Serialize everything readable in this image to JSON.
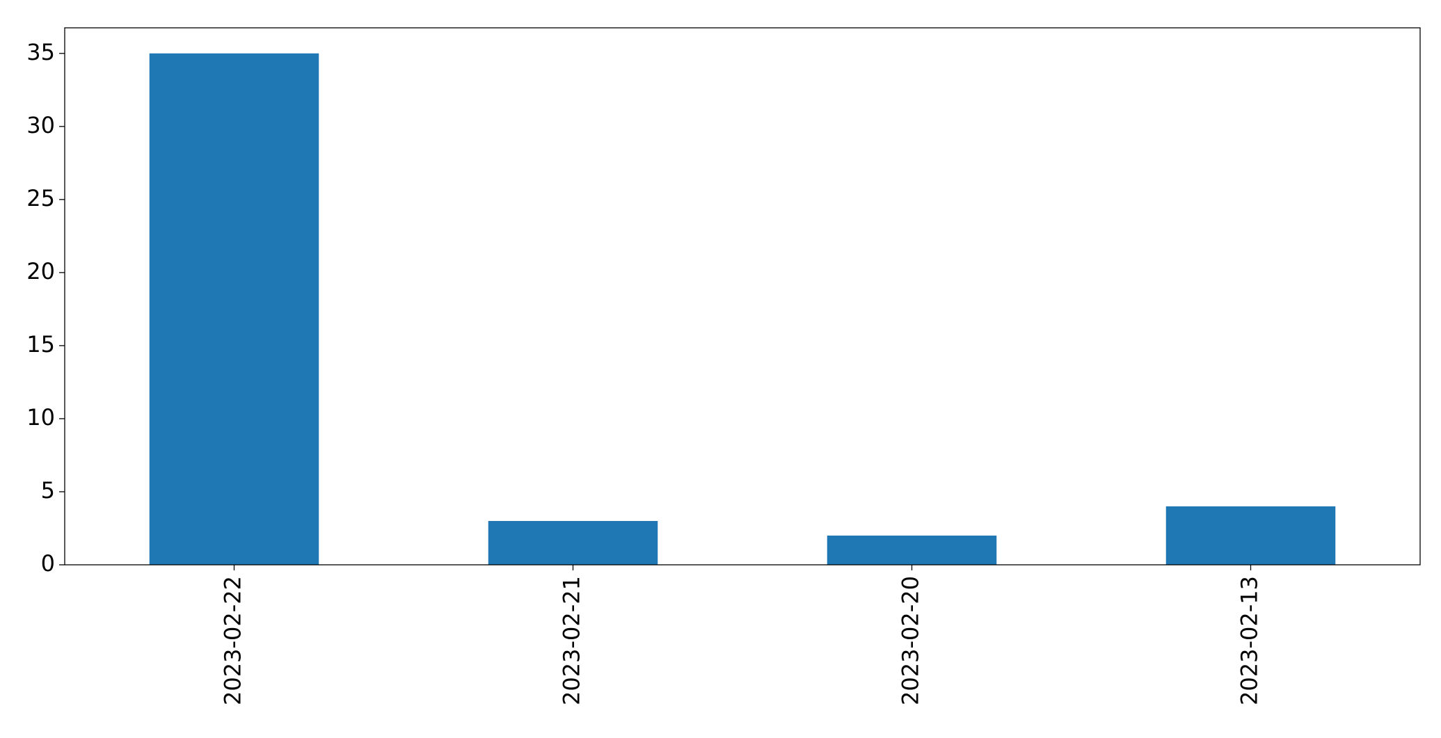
{
  "chart_data": {
    "type": "bar",
    "categories": [
      "2023-02-22",
      "2023-02-21",
      "2023-02-20",
      "2023-02-13"
    ],
    "values": [
      35,
      3,
      2,
      4
    ],
    "color": "#1f77b4",
    "ylim": [
      0,
      36.75
    ],
    "yticks": [
      0,
      5,
      10,
      15,
      20,
      25,
      30,
      35
    ],
    "grid": false
  }
}
